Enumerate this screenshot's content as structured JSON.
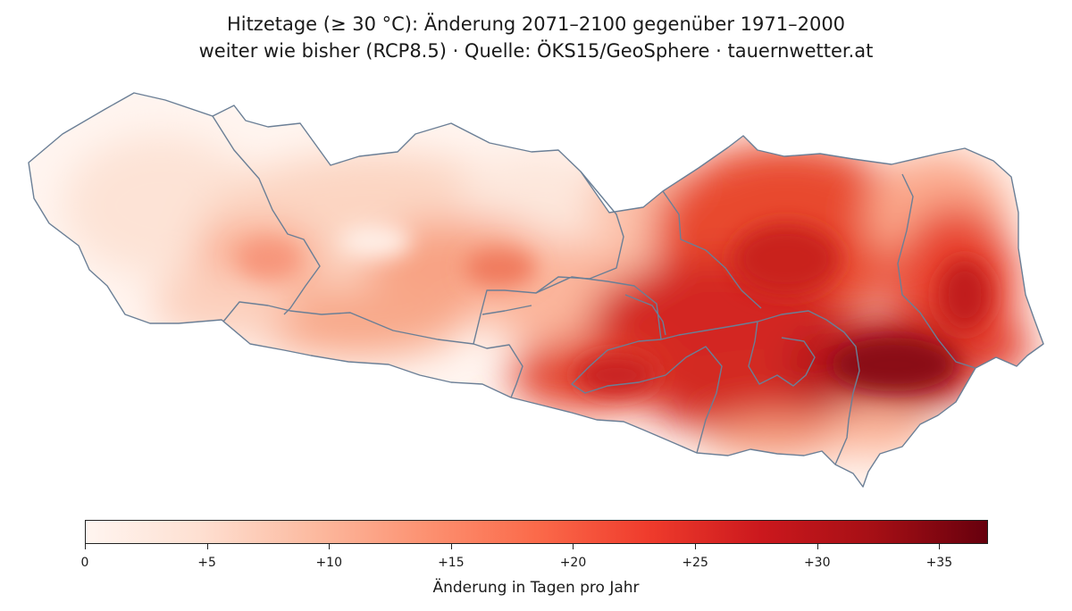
{
  "title": {
    "line1": "Hitzetage (≥ 30 °C): Änderung 2071–2100 gegenüber 1971–2000",
    "line2": "weiter wie bisher (RCP8.5) · Quelle: ÖKS15/GeoSphere · tauernwetter.at"
  },
  "colorbar": {
    "label": "Änderung in Tagen pro Jahr",
    "range": [
      0,
      37
    ],
    "ticks": [
      {
        "value": 0,
        "label": "0"
      },
      {
        "value": 5,
        "label": "+5"
      },
      {
        "value": 10,
        "label": "+10"
      },
      {
        "value": 15,
        "label": "+15"
      },
      {
        "value": 20,
        "label": "+20"
      },
      {
        "value": 25,
        "label": "+25"
      },
      {
        "value": 30,
        "label": "+30"
      },
      {
        "value": 35,
        "label": "+35"
      }
    ],
    "colors": [
      "#fff5f0",
      "#fee0d2",
      "#fcbba1",
      "#fc9272",
      "#fb6a4a",
      "#ef3b2c",
      "#cb181d",
      "#a50f15",
      "#67000d"
    ]
  },
  "map": {
    "border_color": "#6b7f96",
    "region": "Kärnten"
  }
}
